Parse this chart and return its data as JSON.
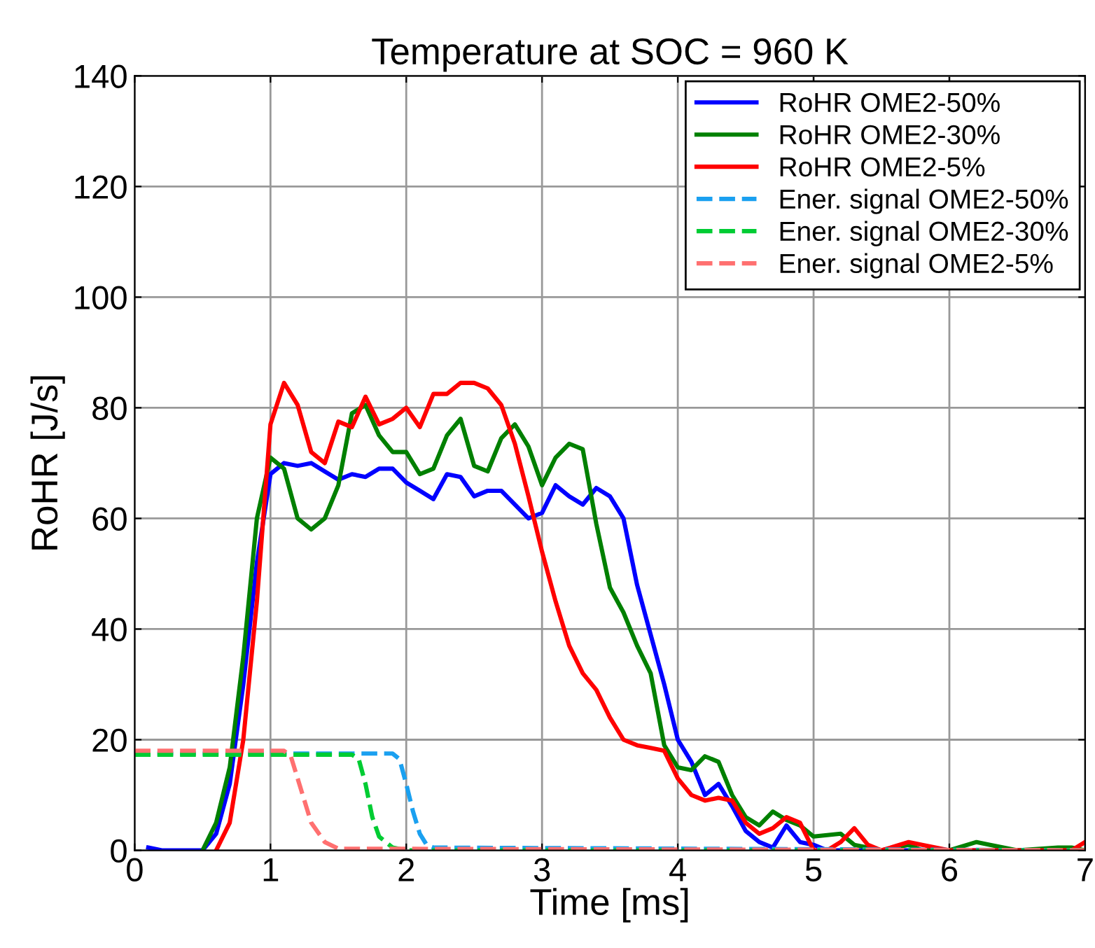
{
  "chart_data": {
    "type": "line",
    "title": "Temperature at SOC = 960 K",
    "xlabel": "Time [ms]",
    "ylabel": "RoHR [J/s]",
    "xlim": [
      0,
      7
    ],
    "ylim": [
      0,
      140
    ],
    "xticks": [
      0,
      1,
      2,
      3,
      4,
      5,
      6,
      7
    ],
    "yticks": [
      0,
      20,
      40,
      60,
      80,
      100,
      120,
      140
    ],
    "grid": true,
    "legend": "top right",
    "marker": "none",
    "series": [
      {
        "name": "RoHR OME2-50%",
        "color": "#0000ff",
        "line_style": "solid",
        "x": [
          0.1,
          0.2,
          0.5,
          0.6,
          0.7,
          0.8,
          0.9,
          1.0,
          1.1,
          1.2,
          1.3,
          1.4,
          1.5,
          1.6,
          1.7,
          1.8,
          1.9,
          2.0,
          2.1,
          2.2,
          2.3,
          2.4,
          2.5,
          2.6,
          2.7,
          2.8,
          2.9,
          3.0,
          3.1,
          3.2,
          3.3,
          3.4,
          3.5,
          3.6,
          3.7,
          3.8,
          3.9,
          4.0,
          4.1,
          4.2,
          4.3,
          4.4,
          4.5,
          4.6,
          4.7,
          4.8,
          4.9,
          5.0,
          5.1,
          7.0
        ],
        "values": [
          0.5,
          0,
          0,
          3,
          12,
          30,
          52,
          68,
          70,
          69.5,
          70,
          68.5,
          67,
          68,
          67.5,
          69,
          69,
          66.5,
          65,
          63.5,
          68,
          67.5,
          64,
          65,
          65,
          62.5,
          60,
          61,
          66,
          64,
          62.5,
          65.5,
          64,
          60,
          48,
          39,
          30,
          20,
          16,
          10,
          12,
          8,
          3.5,
          1.5,
          0.5,
          4.5,
          1.5,
          1,
          0,
          0
        ]
      },
      {
        "name": "RoHR OME2-30%",
        "color": "#008000",
        "line_style": "solid",
        "x": [
          0.5,
          0.6,
          0.7,
          0.8,
          0.9,
          1.0,
          1.1,
          1.2,
          1.3,
          1.4,
          1.5,
          1.6,
          1.7,
          1.8,
          1.9,
          2.0,
          2.1,
          2.2,
          2.3,
          2.4,
          2.5,
          2.6,
          2.7,
          2.8,
          2.9,
          3.0,
          3.1,
          3.2,
          3.3,
          3.4,
          3.5,
          3.6,
          3.7,
          3.8,
          3.9,
          4.0,
          4.1,
          4.2,
          4.3,
          4.4,
          4.5,
          4.6,
          4.7,
          4.8,
          4.9,
          5.0,
          5.2,
          5.3,
          5.5,
          5.6,
          5.7,
          5.8,
          6.0,
          6.2,
          6.3,
          6.5,
          6.8,
          6.9,
          7.0
        ],
        "values": [
          0,
          5,
          15,
          35,
          60,
          71,
          69,
          60,
          58,
          60,
          66,
          79,
          80.5,
          75,
          72,
          72,
          68,
          69,
          75,
          78,
          69.5,
          68.5,
          74.5,
          77,
          73,
          66,
          71,
          73.5,
          72.5,
          59,
          47.5,
          43,
          37,
          32,
          19,
          15,
          14.5,
          17,
          16,
          10,
          6,
          4.5,
          7,
          5.5,
          4.5,
          2.5,
          3,
          1,
          0,
          0.5,
          1,
          0,
          0,
          1.5,
          1,
          0,
          0.5,
          0.5,
          0
        ]
      },
      {
        "name": "RoHR OME2-5%",
        "color": "#ff0000",
        "line_style": "solid",
        "x": [
          0.6,
          0.7,
          0.8,
          0.9,
          1.0,
          1.1,
          1.2,
          1.3,
          1.4,
          1.5,
          1.6,
          1.7,
          1.8,
          1.9,
          2.0,
          2.1,
          2.2,
          2.3,
          2.4,
          2.5,
          2.6,
          2.7,
          2.8,
          2.9,
          3.0,
          3.1,
          3.2,
          3.3,
          3.4,
          3.5,
          3.6,
          3.7,
          3.8,
          3.9,
          4.0,
          4.1,
          4.2,
          4.3,
          4.4,
          4.5,
          4.6,
          4.7,
          4.8,
          4.9,
          5.0,
          5.1,
          5.2,
          5.3,
          5.4,
          5.5,
          5.7,
          5.8,
          6.0,
          6.9,
          7.0
        ],
        "values": [
          0,
          5,
          20,
          45,
          77,
          84.5,
          80.5,
          72,
          70,
          77.5,
          76.5,
          82,
          77,
          78,
          80,
          76.5,
          82.5,
          82.5,
          84.5,
          84.5,
          83.5,
          80.5,
          73.5,
          64,
          54,
          45,
          37,
          32,
          29,
          24,
          20,
          19,
          18.5,
          18,
          13,
          10,
          9,
          9.5,
          9,
          5,
          3,
          4,
          6,
          5,
          0,
          0,
          1.5,
          4,
          1,
          0,
          1.5,
          1,
          0,
          0,
          1.5
        ]
      },
      {
        "name": "Ener. signal OME2-50%",
        "color": "#1aa0f0",
        "line_style": "dashed",
        "x": [
          0,
          1.0,
          1.9,
          1.95,
          2.0,
          2.05,
          2.1,
          2.15,
          2.2,
          7.0
        ],
        "values": [
          17.5,
          17.5,
          17.5,
          16.5,
          12,
          7,
          3,
          1,
          0.5,
          0
        ]
      },
      {
        "name": "Ener. signal OME2-30%",
        "color": "#00cc33",
        "line_style": "dashed",
        "x": [
          0,
          1.6,
          1.65,
          1.7,
          1.75,
          1.8,
          1.9,
          2.0,
          7.0
        ],
        "values": [
          17.3,
          17.3,
          16.5,
          12,
          6,
          2.5,
          0.5,
          0,
          0
        ]
      },
      {
        "name": "Ener. signal OME2-5%",
        "color": "#ff7070",
        "line_style": "dashed",
        "x": [
          0,
          1.1,
          1.15,
          1.2,
          1.25,
          1.3,
          1.4,
          1.5,
          7.0
        ],
        "values": [
          18,
          18,
          17,
          13,
          9,
          5,
          1.5,
          0.3,
          0
        ]
      }
    ]
  }
}
